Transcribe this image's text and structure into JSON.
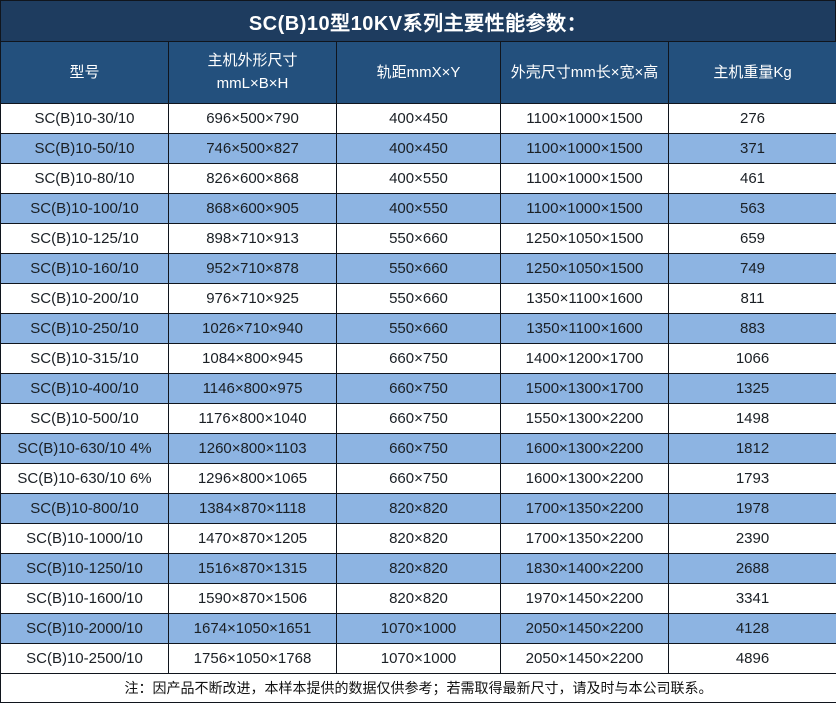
{
  "title": "SC(B)10型10KV系列主要性能参数：",
  "columns": [
    {
      "label": "型号"
    },
    {
      "label": "主机外形尺寸",
      "sub": "mmL×B×H"
    },
    {
      "label": "轨距mmX×Y"
    },
    {
      "label": "外壳尺寸mm长×宽×高"
    },
    {
      "label": "主机重量Kg"
    }
  ],
  "rows": [
    [
      "SC(B)10-30/10",
      "696×500×790",
      "400×450",
      "1100×1000×1500",
      "276"
    ],
    [
      "SC(B)10-50/10",
      "746×500×827",
      "400×450",
      "1100×1000×1500",
      "371"
    ],
    [
      "SC(B)10-80/10",
      "826×600×868",
      "400×550",
      "1100×1000×1500",
      "461"
    ],
    [
      "SC(B)10-100/10",
      "868×600×905",
      "400×550",
      "1100×1000×1500",
      "563"
    ],
    [
      "SC(B)10-125/10",
      "898×710×913",
      "550×660",
      "1250×1050×1500",
      "659"
    ],
    [
      "SC(B)10-160/10",
      "952×710×878",
      "550×660",
      "1250×1050×1500",
      "749"
    ],
    [
      "SC(B)10-200/10",
      "976×710×925",
      "550×660",
      "1350×1100×1600",
      "811"
    ],
    [
      "SC(B)10-250/10",
      "1026×710×940",
      "550×660",
      "1350×1100×1600",
      "883"
    ],
    [
      "SC(B)10-315/10",
      "1084×800×945",
      "660×750",
      "1400×1200×1700",
      "1066"
    ],
    [
      "SC(B)10-400/10",
      "1146×800×975",
      "660×750",
      "1500×1300×1700",
      "1325"
    ],
    [
      "SC(B)10-500/10",
      "1176×800×1040",
      "660×750",
      "1550×1300×2200",
      "1498"
    ],
    [
      "SC(B)10-630/10 4%",
      "1260×800×1103",
      "660×750",
      "1600×1300×2200",
      "1812"
    ],
    [
      "SC(B)10-630/10 6%",
      "1296×800×1065",
      "660×750",
      "1600×1300×2200",
      "1793"
    ],
    [
      "SC(B)10-800/10",
      "1384×870×1118",
      "820×820",
      "1700×1350×2200",
      "1978"
    ],
    [
      "SC(B)10-1000/10",
      "1470×870×1205",
      "820×820",
      "1700×1350×2200",
      "2390"
    ],
    [
      "SC(B)10-1250/10",
      "1516×870×1315",
      "820×820",
      "1830×1400×2200",
      "2688"
    ],
    [
      "SC(B)10-1600/10",
      "1590×870×1506",
      "820×820",
      "1970×1450×2200",
      "3341"
    ],
    [
      "SC(B)10-2000/10",
      "1674×1050×1651",
      "1070×1000",
      "2050×1450×2200",
      "4128"
    ],
    [
      "SC(B)10-2500/10",
      "1756×1050×1768",
      "1070×1000",
      "2050×1450×2200",
      "4896"
    ]
  ],
  "note": "注：因产品不断改进，本样本提供的数据仅供参考；若需取得最新尺寸，请及时与本公司联系。",
  "colors": {
    "title_bg": "#1e3c5f",
    "header_bg": "#23507d",
    "stripe_bg": "#8db4e2",
    "row_bg": "#ffffff",
    "border": "#10151d",
    "header_text": "#ffffff",
    "body_text": "#1a1f24"
  }
}
